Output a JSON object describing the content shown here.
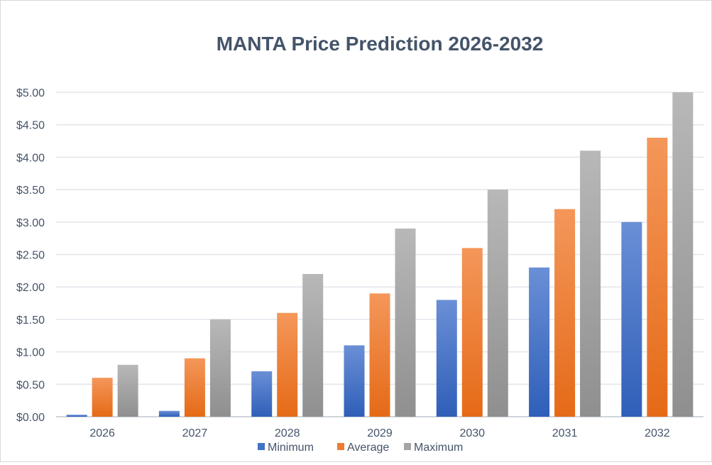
{
  "chart_data": {
    "type": "bar",
    "title": "MANTA Price Prediction 2026-2032",
    "xlabel": "",
    "ylabel": "",
    "categories": [
      "2026",
      "2027",
      "2028",
      "2029",
      "2030",
      "2031",
      "2032"
    ],
    "ylim": [
      0,
      5
    ],
    "yticks": [
      "$0.00",
      "$0.50",
      "$1.00",
      "$1.50",
      "$2.00",
      "$2.50",
      "$3.00",
      "$3.50",
      "$4.00",
      "$4.50",
      "$5.00"
    ],
    "grid": true,
    "legend": "bottom",
    "series": [
      {
        "name": "Minimum",
        "color": "#4472c4",
        "values": [
          0.03,
          0.09,
          0.7,
          1.1,
          1.8,
          2.3,
          3.0
        ]
      },
      {
        "name": "Average",
        "color": "#ed7d31",
        "values": [
          0.6,
          0.9,
          1.6,
          1.9,
          2.6,
          3.2,
          4.3
        ]
      },
      {
        "name": "Maximum",
        "color": "#a5a5a5",
        "values": [
          0.8,
          1.5,
          2.2,
          2.9,
          3.5,
          4.1,
          5.0
        ]
      }
    ]
  }
}
